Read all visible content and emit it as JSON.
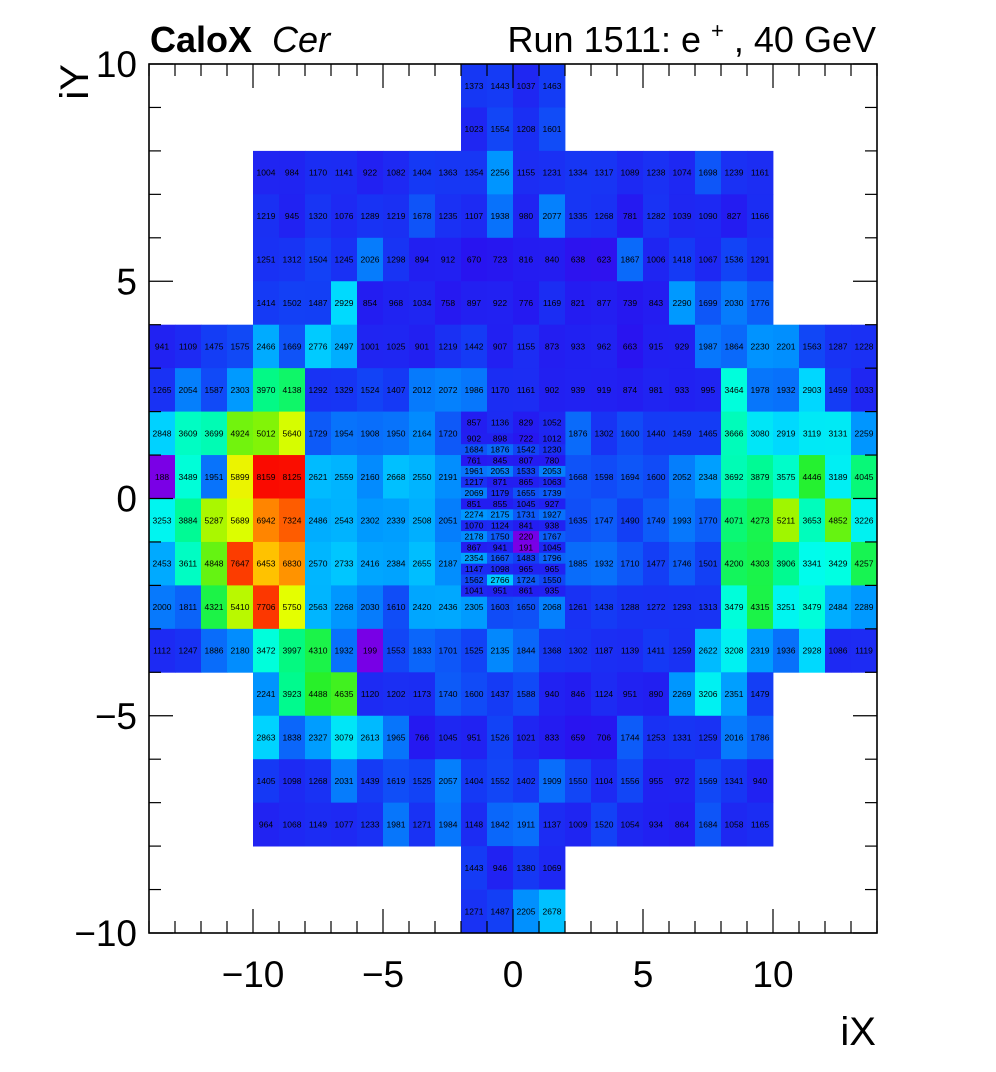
{
  "header": {
    "brand_bold": "CaloX",
    "brand_italic": "Cer",
    "run_prefix": "Run 1511: e",
    "run_sup": "+",
    "run_suffix": ", 40 GeV"
  },
  "chart_data": {
    "type": "heatmap",
    "xlabel": "iX",
    "ylabel": "iY",
    "xlim": [
      -14,
      14
    ],
    "ylim": [
      -10,
      10
    ],
    "xticks": [
      -10,
      -5,
      0,
      5,
      10
    ],
    "yticks": [
      -10,
      -5,
      0,
      5,
      10
    ],
    "xtick_labels": [
      "−10",
      "−5",
      "0",
      "5",
      "10"
    ],
    "ytick_labels": [
      "−10",
      "−5",
      "0",
      "5",
      "10"
    ],
    "color_scale": [
      188,
      8159
    ],
    "palette": "rainbow",
    "rows": [
      {
        "y0": 9,
        "y1": 10,
        "x0": -2,
        "values": [
          1373,
          1443,
          1037,
          1463
        ]
      },
      {
        "y0": 8,
        "y1": 9,
        "x0": -2,
        "values": [
          1023,
          1554,
          1208,
          1601
        ]
      },
      {
        "y0": 7,
        "y1": 8,
        "x0": -10,
        "values": [
          1004,
          984,
          1170,
          1141,
          922,
          1082,
          1404,
          1363,
          1354,
          2256,
          1155,
          1231,
          1334,
          1317,
          1089,
          1238,
          1074,
          1698,
          1239,
          1161
        ]
      },
      {
        "y0": 6,
        "y1": 7,
        "x0": -10,
        "values": [
          1219,
          945,
          1320,
          1076,
          1289,
          1219,
          1678,
          1235,
          1107,
          1938,
          980,
          2077,
          1335,
          1268,
          781,
          1282,
          1039,
          1090,
          827,
          1166
        ]
      },
      {
        "y0": 5,
        "y1": 6,
        "x0": -10,
        "values": [
          1251,
          1312,
          1504,
          1245,
          2026,
          1298,
          894,
          912,
          670,
          723,
          816,
          840,
          638,
          623,
          1867,
          1006,
          1418,
          1067,
          1536,
          1291
        ]
      },
      {
        "y0": 4,
        "y1": 5,
        "x0": -10,
        "values": [
          1414,
          1502,
          1487,
          2929,
          854,
          968,
          1034,
          758,
          897,
          922,
          776,
          1169,
          821,
          877,
          739,
          843,
          2290,
          1699,
          2030,
          1776
        ]
      },
      {
        "y0": 3,
        "y1": 4,
        "x0": -14,
        "values": [
          941,
          1109,
          1475,
          1575,
          2466,
          1669,
          2776,
          2497,
          1001,
          1025,
          901,
          1219,
          1442,
          907,
          1155,
          873,
          933,
          962,
          663,
          915,
          929,
          1987,
          1864,
          2230,
          2201,
          1563,
          1287,
          1228
        ]
      },
      {
        "y0": 2,
        "y1": 3,
        "x0": -14,
        "values": [
          1265,
          2054,
          1587,
          2303,
          3970,
          4138,
          1292,
          1329,
          1524,
          1407,
          2012,
          2072,
          1986,
          1170,
          1161,
          902,
          939,
          919,
          874,
          981,
          933,
          995,
          3464,
          1978,
          1932,
          2903,
          1459,
          1033
        ]
      },
      {
        "y0": 1,
        "y1": 2,
        "x0": -14,
        "values": [
          2848,
          3609,
          3699,
          4924,
          5012,
          5640,
          1729,
          1954,
          1908,
          1950,
          2164,
          1720,
          null,
          null,
          null,
          null,
          1876,
          1302,
          1600,
          1440,
          1459,
          1465,
          3666,
          3080,
          2919,
          3119,
          3131,
          2259
        ]
      },
      {
        "y0": 0,
        "y1": 1,
        "x0": -14,
        "values": [
          188,
          3489,
          1951,
          5899,
          8159,
          8125,
          2621,
          2559,
          2160,
          2668,
          2550,
          2191,
          null,
          null,
          null,
          null,
          1668,
          1598,
          1694,
          1600,
          2052,
          2348,
          3692,
          3879,
          3575,
          4446,
          3189,
          4045
        ]
      },
      {
        "y0": -1,
        "y1": 0,
        "x0": -14,
        "values": [
          3253,
          3884,
          5287,
          5689,
          6942,
          7324,
          2486,
          2543,
          2302,
          2339,
          2508,
          2051,
          null,
          null,
          null,
          null,
          1635,
          1747,
          1490,
          1749,
          1993,
          1770,
          4071,
          4273,
          5211,
          3653,
          4852,
          3226
        ]
      },
      {
        "y0": -2,
        "y1": -1,
        "x0": -14,
        "values": [
          2453,
          3611,
          4848,
          7647,
          6453,
          6830,
          2570,
          2733,
          2416,
          2384,
          2655,
          2187,
          null,
          null,
          null,
          null,
          1885,
          1932,
          1710,
          1477,
          1746,
          1501,
          4200,
          4303,
          3906,
          3341,
          3429,
          4257
        ]
      },
      {
        "y0": -3,
        "y1": -2,
        "x0": -14,
        "values": [
          2000,
          1811,
          4321,
          5410,
          7706,
          5750,
          2563,
          2268,
          2030,
          1610,
          2420,
          2436,
          2305,
          1603,
          1650,
          2068,
          1261,
          1438,
          1288,
          1272,
          1293,
          1313,
          3479,
          4315,
          3251,
          3479,
          2484,
          2289
        ]
      },
      {
        "y0": -4,
        "y1": -3,
        "x0": -14,
        "values": [
          1112,
          1247,
          1886,
          2180,
          3472,
          3997,
          4310,
          1932,
          199,
          1553,
          1833,
          1701,
          1525,
          2135,
          1844,
          1368,
          1302,
          1187,
          1139,
          1411,
          1259,
          2622,
          3208,
          2319,
          1936,
          2928,
          1086,
          1119
        ]
      },
      {
        "y0": -5,
        "y1": -4,
        "x0": -10,
        "values": [
          2241,
          3923,
          4488,
          4635,
          1120,
          1202,
          1173,
          1740,
          1600,
          1437,
          1588,
          940,
          846,
          1124,
          951,
          890,
          2269,
          3206,
          2351,
          1479
        ]
      },
      {
        "y0": -6,
        "y1": -5,
        "x0": -10,
        "values": [
          2863,
          1838,
          2327,
          3079,
          2613,
          1965,
          766,
          1045,
          951,
          1526,
          1021,
          833,
          659,
          706,
          1744,
          1253,
          1331,
          1259,
          2016,
          1786
        ]
      },
      {
        "y0": -7,
        "y1": -6,
        "x0": -10,
        "values": [
          1405,
          1098,
          1268,
          2031,
          1439,
          1619,
          1525,
          2057,
          1404,
          1552,
          1402,
          1909,
          1550,
          1104,
          1556,
          955,
          972,
          1569,
          1341,
          940
        ]
      },
      {
        "y0": -8,
        "y1": -7,
        "x0": -10,
        "values": [
          964,
          1068,
          1149,
          1077,
          1233,
          1981,
          1271,
          1984,
          1148,
          1842,
          1911,
          1137,
          1009,
          1520,
          1054,
          934,
          864,
          1684,
          1058,
          1165
        ]
      },
      {
        "y0": -9,
        "y1": -8,
        "x0": -2,
        "values": [
          1443,
          946,
          1380,
          1069
        ]
      },
      {
        "y0": -10,
        "y1": -9,
        "x0": -2,
        "values": [
          1271,
          1487,
          2205,
          2678
        ]
      }
    ],
    "center_rows": [
      {
        "y0": 1.5,
        "y1": 2.0,
        "x0": -2,
        "values": [
          857,
          1136,
          829,
          1052
        ]
      },
      {
        "y0": 1.25,
        "y1": 1.5,
        "x0": -2,
        "values": [
          902,
          898,
          722,
          1012
        ]
      },
      {
        "y0": 1.0,
        "y1": 1.25,
        "x0": -2,
        "values": [
          1684,
          1876,
          1542,
          1230
        ]
      },
      {
        "y0": 0.75,
        "y1": 1.0,
        "x0": -2,
        "values": [
          761,
          845,
          807,
          780
        ]
      },
      {
        "y0": 0.5,
        "y1": 0.75,
        "x0": -2,
        "values": [
          1961,
          2053,
          1533,
          2053
        ]
      },
      {
        "y0": 0.25,
        "y1": 0.5,
        "x0": -2,
        "values": [
          1217,
          871,
          865,
          1063
        ]
      },
      {
        "y0": 0.0,
        "y1": 0.25,
        "x0": -2,
        "values": [
          2069,
          1179,
          1655,
          1739
        ]
      },
      {
        "y0": -0.25,
        "y1": 0.0,
        "x0": -2,
        "values": [
          851,
          855,
          1045,
          927
        ]
      },
      {
        "y0": -0.5,
        "y1": -0.25,
        "x0": -2,
        "values": [
          2274,
          2175,
          1731,
          1927
        ]
      },
      {
        "y0": -0.75,
        "y1": -0.5,
        "x0": -2,
        "values": [
          1070,
          1124,
          841,
          938
        ]
      },
      {
        "y0": -1.0,
        "y1": -0.75,
        "x0": -2,
        "values": [
          2178,
          1750,
          220,
          1767
        ]
      },
      {
        "y0": -1.25,
        "y1": -1.0,
        "x0": -2,
        "values": [
          867,
          941,
          191,
          1045
        ]
      },
      {
        "y0": -1.5,
        "y1": -1.25,
        "x0": -2,
        "values": [
          2354,
          1667,
          1483,
          1796
        ]
      },
      {
        "y0": -1.75,
        "y1": -1.5,
        "x0": -2,
        "values": [
          1147,
          1098,
          965,
          965
        ]
      },
      {
        "y0": -2.0,
        "y1": -1.75,
        "x0": -2,
        "values": [
          1562,
          2766,
          1724,
          1550
        ]
      },
      {
        "y0": -2.25,
        "y1": -2.0,
        "x0": -2,
        "values": [
          1041,
          951,
          861,
          935
        ]
      }
    ]
  }
}
